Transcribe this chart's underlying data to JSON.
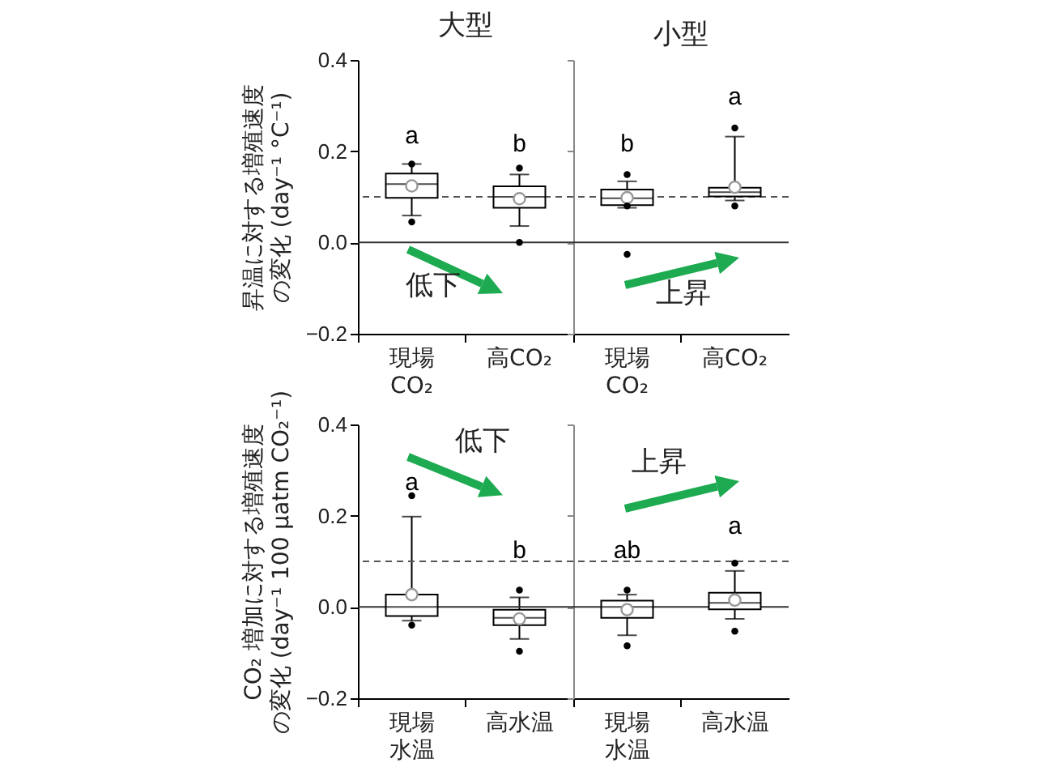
{
  "chart_data": [
    {
      "type": "box",
      "title": "大型",
      "ylabel": "昇温に対する増殖速度の変化 (day⁻¹ °C⁻¹)",
      "categories": [
        "現場CO₂",
        "高CO₂"
      ],
      "boxes": [
        {
          "low": 0.059,
          "q1": 0.098,
          "median": 0.128,
          "q3": 0.151,
          "high": 0.172,
          "mean": 0.124,
          "outliers": [
            0.172,
            0.045
          ]
        },
        {
          "low": 0.036,
          "q1": 0.076,
          "median": 0.1,
          "q3": 0.123,
          "high": 0.149,
          "mean": 0.096,
          "outliers": [
            0.163,
            0.0
          ]
        }
      ],
      "ylim": [
        -0.2,
        0.4
      ],
      "yticks": [
        -0.2,
        {
          "value": 0,
          "label": "0.0"
        },
        0.2,
        0.4
      ],
      "ref_lines": [
        {
          "axis": "y",
          "value": 0.1,
          "line_style": "dashed",
          "color": "#555555"
        },
        {
          "axis": "y",
          "value": 0,
          "line_style": "solid",
          "color": "#333333"
        }
      ],
      "annotations": [
        "低下",
        "a",
        "b"
      ]
    },
    {
      "type": "box",
      "title": "小型",
      "categories": [
        "現場CO₂",
        "高CO₂"
      ],
      "boxes": [
        {
          "low": 0.076,
          "q1": 0.082,
          "median": 0.097,
          "q3": 0.116,
          "high": 0.134,
          "mean": 0.098,
          "outliers": [
            0.149,
            0.08,
            -0.026
          ]
        },
        {
          "low": 0.092,
          "q1": 0.101,
          "median": 0.11,
          "q3": 0.12,
          "high": 0.232,
          "mean": 0.121,
          "outliers": [
            0.251,
            0.08
          ]
        }
      ],
      "ylim": [
        -0.2,
        0.4
      ],
      "yticks": [
        -0.2,
        0,
        0.2,
        0.4
      ],
      "tick_labels": "x",
      "ref_lines": [
        {
          "axis": "y",
          "value": 0.1,
          "line_style": "dashed",
          "color": "#555555"
        },
        {
          "axis": "y",
          "value": 0,
          "line_style": "solid",
          "color": "#333333"
        }
      ],
      "annotations": [
        "上昇",
        "b",
        "a"
      ]
    },
    {
      "type": "box",
      "ylabel": "CO₂ 増加に対する増殖速度の変化 (day⁻¹ 100 µatm CO₂⁻¹)",
      "categories": [
        "現場水温",
        "高水温"
      ],
      "boxes": [
        {
          "low": -0.03,
          "q1": -0.02,
          "median": 0.0,
          "q3": 0.027,
          "high": 0.198,
          "mean": 0.027,
          "outliers": [
            0.244,
            -0.04
          ]
        },
        {
          "low": -0.07,
          "q1": -0.04,
          "median": -0.024,
          "q3": -0.006,
          "high": 0.021,
          "mean": -0.026,
          "outliers": [
            0.037,
            -0.097
          ]
        }
      ],
      "ylim": [
        -0.2,
        0.4
      ],
      "yticks": [
        -0.2,
        {
          "value": 0,
          "label": "0.0"
        },
        0.2,
        0.4
      ],
      "ref_lines": [
        {
          "axis": "y",
          "value": 0.1,
          "line_style": "dashed",
          "color": "#555555"
        },
        {
          "axis": "y",
          "value": 0,
          "line_style": "solid",
          "color": "#333333"
        }
      ],
      "annotations": [
        "低下",
        "a",
        "b"
      ]
    },
    {
      "type": "box",
      "categories": [
        "現場水温",
        "高水温"
      ],
      "boxes": [
        {
          "low": -0.062,
          "q1": -0.024,
          "median": 0.0,
          "q3": 0.014,
          "high": 0.027,
          "mean": -0.006,
          "outliers": [
            0.037,
            -0.085
          ]
        },
        {
          "low": -0.026,
          "q1": -0.005,
          "median": 0.009,
          "q3": 0.031,
          "high": 0.079,
          "mean": 0.015,
          "outliers": [
            0.096,
            -0.053
          ]
        }
      ],
      "ylim": [
        -0.2,
        0.4
      ],
      "yticks": [
        -0.2,
        0,
        0.2,
        0.4
      ],
      "tick_labels": "x",
      "ref_lines": [
        {
          "axis": "y",
          "value": 0.1,
          "line_style": "dashed",
          "color": "#555555"
        },
        {
          "axis": "y",
          "value": 0,
          "line_style": "solid",
          "color": "#333333"
        }
      ],
      "annotations": [
        "上昇",
        "ab",
        "a"
      ]
    }
  ]
}
